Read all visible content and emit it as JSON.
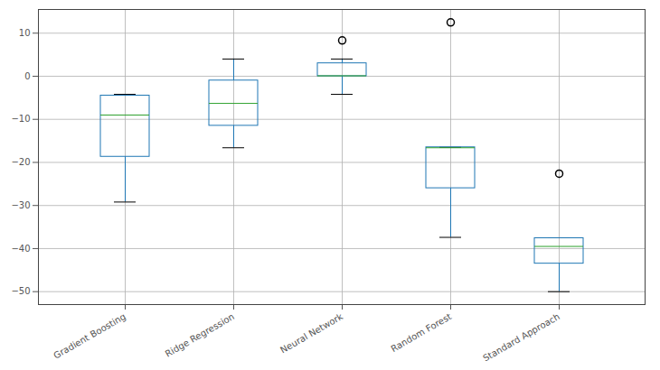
{
  "chart_data": {
    "type": "box",
    "categories": [
      "Gradient Boosting",
      "Ridge Regression",
      "Neural Network",
      "Random Forest",
      "Standard Approach"
    ],
    "stats": [
      {
        "low": -29.2,
        "q1": -18.7,
        "median": -9.0,
        "q3": -4.5,
        "high": -4.2,
        "outliers": []
      },
      {
        "low": -16.6,
        "q1": -11.5,
        "median": -6.3,
        "q3": -1.0,
        "high": 4.0,
        "outliers": []
      },
      {
        "low": -4.2,
        "q1": 0.0,
        "median": 0.1,
        "q3": 3.0,
        "high": 4.0,
        "outliers": [
          8.3
        ]
      },
      {
        "low": -37.4,
        "q1": -26.0,
        "median": -16.6,
        "q3": -16.5,
        "high": -16.5,
        "outliers": [
          12.5
        ]
      },
      {
        "low": -50.0,
        "q1": -43.5,
        "median": -39.5,
        "q3": -37.6,
        "high": -37.5,
        "outliers": [
          -22.6
        ]
      }
    ],
    "color": "#1f77b4",
    "ylim": [
      -53,
      15.5
    ],
    "yticks": [
      -50,
      -40,
      -30,
      -20,
      -10,
      0,
      10
    ],
    "grid": true
  }
}
